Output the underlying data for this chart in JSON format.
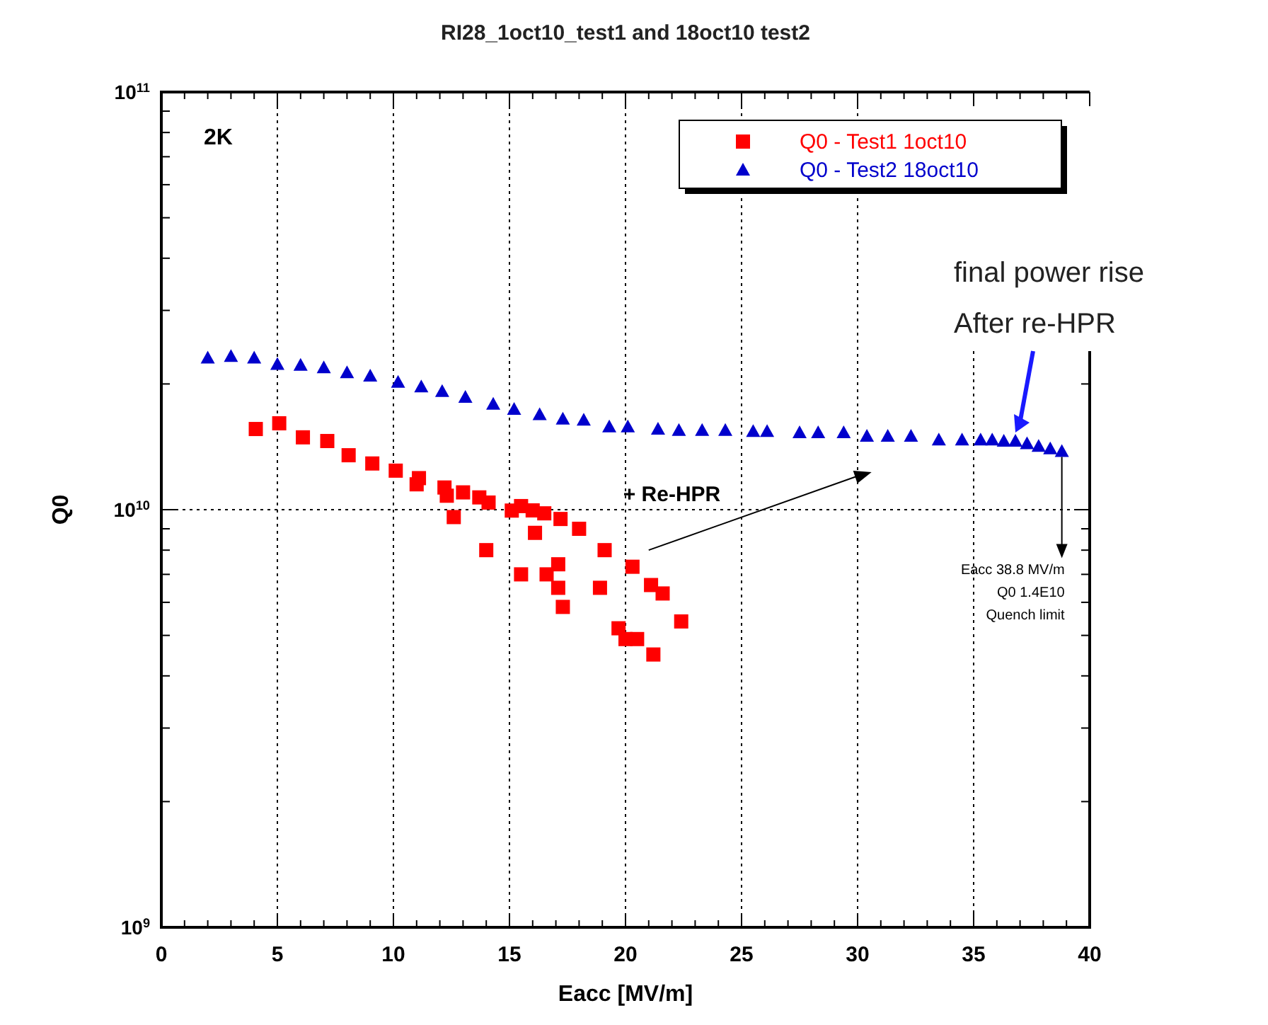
{
  "chart_data": {
    "type": "scatter",
    "title": "RI28_1oct10_test1 and 18oct10 test2",
    "xlabel": "Eacc [MV/m]",
    "ylabel": "Q0",
    "xlim": [
      0,
      40
    ],
    "xticks": [
      0,
      5,
      10,
      15,
      20,
      25,
      30,
      35,
      40
    ],
    "ylim": [
      1000000000.0,
      100000000000.0
    ],
    "yticks": [
      {
        "value": 1000000000.0,
        "label": "10$^{9}$"
      },
      {
        "value": 10000000000.0,
        "label": "10$^{10}$"
      },
      {
        "value": 100000000000.0,
        "label": "10$^{11}$"
      }
    ],
    "log": "y",
    "grid": true,
    "legend": "top right",
    "series": [
      {
        "name": "Q0 - Test1 1oct10",
        "color": "#ff0000",
        "marker": "square",
        "x": [
          4.07,
          5.08,
          6.1,
          7.15,
          8.07,
          9.09,
          10.1,
          11.1,
          11.0,
          12.2,
          12.3,
          12.6,
          13.0,
          13.7,
          14.1,
          14.0,
          15.1,
          15.5,
          15.5,
          16.1,
          16.0,
          16.5,
          16.6,
          17.1,
          17.1,
          17.2,
          17.3,
          18.0,
          18.9,
          19.1,
          19.7,
          20.0,
          20.5,
          20.3,
          21.1,
          21.2,
          21.6,
          22.4
        ],
        "values": [
          15600000000.0,
          16100000000.0,
          14900000000.0,
          14600000000.0,
          13500000000.0,
          12900000000.0,
          12400000000.0,
          11900000000.0,
          11500000000.0,
          11300000000.0,
          10800000000.0,
          9600000000.0,
          11000000000.0,
          10700000000.0,
          10400000000.0,
          8000000000.0,
          9950000000.0,
          10200000000.0,
          7000000000.0,
          8800000000.0,
          9960000000.0,
          9800000000.0,
          7000000000.0,
          7400000000.0,
          6500000000.0,
          9500000000.0,
          5850000000.0,
          9000000000.0,
          6500000000.0,
          8000000000.0,
          5200000000.0,
          4900000000.0,
          4900000000.0,
          7300000000.0,
          6600000000.0,
          4500000000.0,
          6300000000.0,
          5400000000.0
        ]
      },
      {
        "name": "Q0 - Test2 18oct10",
        "color": "#0000cc",
        "marker": "triangle",
        "x": [
          2,
          3,
          4,
          5,
          6,
          7,
          8,
          9,
          10.2,
          11.2,
          12.1,
          13.1,
          14.3,
          15.2,
          16.3,
          17.3,
          18.2,
          19.3,
          20.1,
          21.4,
          22.3,
          23.3,
          24.3,
          25.5,
          26.1,
          27.5,
          28.3,
          29.4,
          30.4,
          31.3,
          32.3,
          33.5,
          34.5,
          35.3,
          35.8,
          36.3,
          36.8,
          37.3,
          37.8,
          38.3,
          38.8
        ],
        "values": [
          23100000000.0,
          23300000000.0,
          23100000000.0,
          22300000000.0,
          22200000000.0,
          21900000000.0,
          21300000000.0,
          20900000000.0,
          20200000000.0,
          19700000000.0,
          19200000000.0,
          18600000000.0,
          17900000000.0,
          17400000000.0,
          16900000000.0,
          16500000000.0,
          16400000000.0,
          15800000000.0,
          15800000000.0,
          15600000000.0,
          15500000000.0,
          15500000000.0,
          15500000000.0,
          15400000000.0,
          15400000000.0,
          15300000000.0,
          15300000000.0,
          15300000000.0,
          15000000000.0,
          15000000000.0,
          15000000000.0,
          14700000000.0,
          14700000000.0,
          14700000000.0,
          14700000000.0,
          14600000000.0,
          14600000000.0,
          14400000000.0,
          14200000000.0,
          14000000000.0,
          13800000000.0
        ]
      }
    ],
    "annotations": [
      "2K",
      "+ Re-HPR",
      {
        "text": "Eacc 38.8 MV/m",
        "x": 38.8,
        "y": 13800000000.0
      },
      "Q0 1.4E10",
      "Quench limit",
      "final power rise",
      "After re-HPR"
    ]
  }
}
